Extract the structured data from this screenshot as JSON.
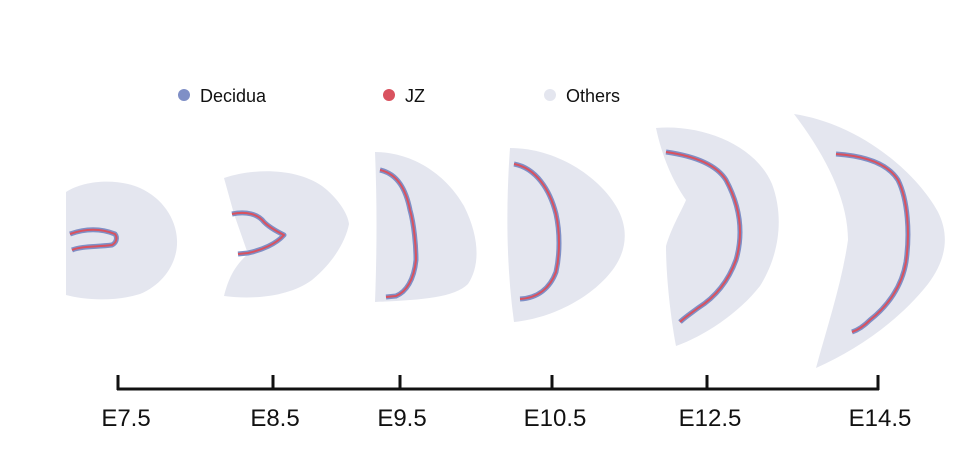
{
  "legend": [
    {
      "label": "Decidua",
      "color": "#7f8fc6"
    },
    {
      "label": "JZ",
      "color": "#d9525f"
    },
    {
      "label": "Others",
      "color": "#e4e6ef"
    }
  ],
  "timeline": {
    "stages": [
      "E7.5",
      "E8.5",
      "E9.5",
      "E10.5",
      "E12.5",
      "E14.5"
    ]
  },
  "colors": {
    "tissue": "#e4e6ef",
    "decidua": "#7f8fc6",
    "jz": "#d9525f",
    "axis": "#111111"
  }
}
